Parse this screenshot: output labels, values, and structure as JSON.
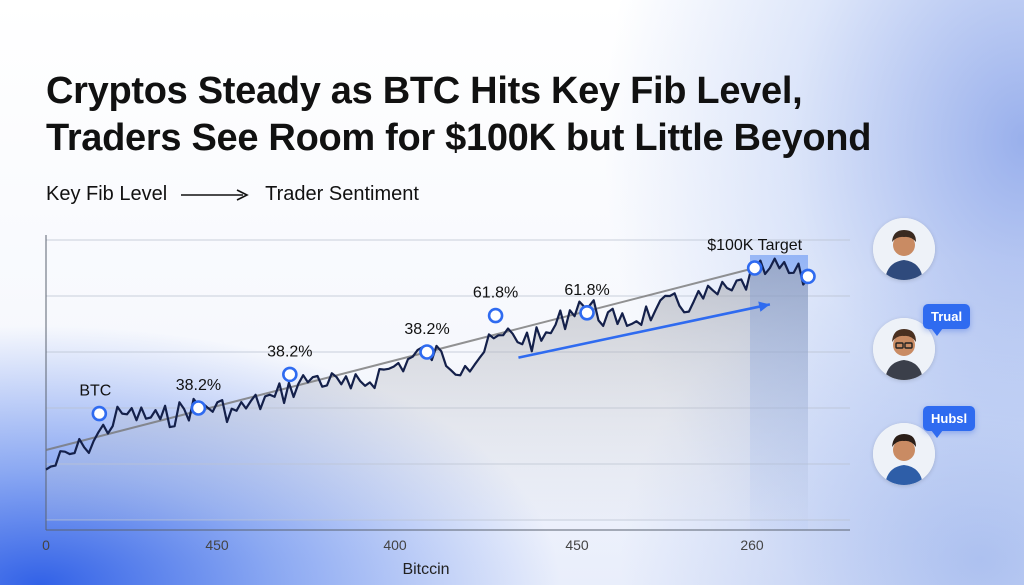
{
  "headline": {
    "line1": "Cryptos Steady as BTC Hits Key Fib Level,",
    "line2": "Traders See Room for $100K but Little Beyond"
  },
  "flow": {
    "from": "Key Fib Level",
    "to": "Trader Sentiment"
  },
  "colors": {
    "line": "#14204a",
    "accent": "#2f6bf0",
    "trend": "#777777"
  },
  "chart_data": {
    "type": "line",
    "title": "",
    "xlabel": "Bitccin",
    "ylabel": "",
    "x_ticks": [
      "0",
      "450",
      "400",
      "450",
      "260"
    ],
    "series": [
      {
        "name": "BTC",
        "x": [
          0,
          5,
          10,
          15,
          20,
          25,
          30,
          35,
          40,
          45,
          50,
          55,
          60,
          65,
          70,
          75,
          80,
          85,
          90,
          95,
          100
        ],
        "values": [
          18,
          26,
          38,
          36,
          41,
          39,
          44,
          51,
          47,
          54,
          60,
          55,
          66,
          64,
          78,
          70,
          75,
          78,
          82,
          90,
          86
        ]
      }
    ],
    "x_range": [
      0,
      100
    ],
    "y_range": [
      0,
      100
    ],
    "markers": [
      {
        "label": "BTC",
        "x": 7,
        "y": 38
      },
      {
        "label": "38.2%",
        "x": 20,
        "y": 40
      },
      {
        "label": "38.2%",
        "x": 32,
        "y": 52
      },
      {
        "label": "38.2%",
        "x": 50,
        "y": 60
      },
      {
        "label": "61.8%",
        "x": 59,
        "y": 73
      },
      {
        "label": "61.8%",
        "x": 71,
        "y": 74
      },
      {
        "label": "$100K Target",
        "x": 93,
        "y": 90
      },
      {
        "label": "",
        "x": 100,
        "y": 87
      }
    ],
    "trend_lines": [
      {
        "name": "fib-trend",
        "from": [
          0,
          25
        ],
        "to": [
          93,
          90
        ]
      },
      {
        "name": "breakout-arrow",
        "from": [
          62,
          58
        ],
        "to": [
          95,
          77
        ]
      }
    ]
  },
  "sidebar": {
    "bubbles": [
      "Trual",
      "Hubsl"
    ]
  }
}
